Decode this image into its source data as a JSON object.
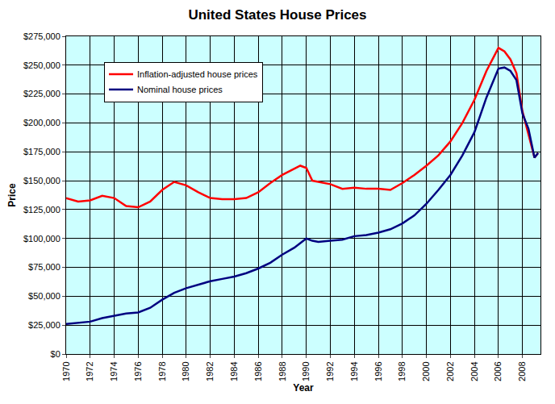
{
  "chart_data": {
    "type": "line",
    "title": "United States House Prices",
    "x_label": "Year",
    "y_label": "Price",
    "x": [
      1970,
      1971,
      1972,
      1973,
      1974,
      1975,
      1976,
      1977,
      1978,
      1979,
      1980,
      1981,
      1982,
      1983,
      1984,
      1985,
      1986,
      1987,
      1988,
      1989,
      1989.5,
      1990,
      1990.5,
      1991,
      1992,
      1993,
      1994,
      1995,
      1996,
      1997,
      1998,
      1999,
      2000,
      2001,
      2002,
      2003,
      2004,
      2005,
      2006,
      2006.5,
      2007,
      2007.5,
      2008,
      2008.5,
      2009,
      2009.3
    ],
    "series": [
      {
        "name": "Inflation-adjusted house prices",
        "color": "#ff0000",
        "values": [
          135000,
          132000,
          133000,
          137000,
          135000,
          128000,
          127000,
          132000,
          142000,
          149000,
          146000,
          140000,
          135000,
          134000,
          134000,
          135000,
          140000,
          148000,
          155000,
          160000,
          163000,
          161000,
          150000,
          149000,
          147000,
          143000,
          144000,
          143000,
          143000,
          142000,
          148000,
          155000,
          163000,
          172000,
          184000,
          200000,
          220000,
          245000,
          265000,
          262000,
          255000,
          243000,
          210000,
          190000,
          170000,
          174000
        ]
      },
      {
        "name": "Nominal house prices",
        "color": "#000080",
        "values": [
          26000,
          27000,
          28000,
          31000,
          33000,
          35000,
          36000,
          40000,
          47000,
          53000,
          57000,
          60000,
          63000,
          65000,
          67000,
          70000,
          74000,
          79000,
          86000,
          92000,
          96000,
          100000,
          98000,
          97000,
          98000,
          99000,
          102000,
          103000,
          105000,
          108000,
          113000,
          120000,
          130000,
          142000,
          155000,
          172000,
          192000,
          222000,
          247000,
          248000,
          245000,
          237000,
          208000,
          195000,
          170000,
          174000
        ]
      }
    ],
    "xlim": [
      1970,
      2009.5
    ],
    "xticks": [
      1970,
      1972,
      1974,
      1976,
      1978,
      1980,
      1982,
      1984,
      1986,
      1988,
      1990,
      1992,
      1994,
      1996,
      1998,
      2000,
      2002,
      2004,
      2006,
      2008
    ],
    "ylim": [
      0,
      275000
    ],
    "yticks": [
      {
        "value": 0,
        "label": "$0"
      },
      {
        "value": 25000,
        "label": "$25,000"
      },
      {
        "value": 50000,
        "label": "$50,000"
      },
      {
        "value": 75000,
        "label": "$75,000"
      },
      {
        "value": 100000,
        "label": "$100,000"
      },
      {
        "value": 125000,
        "label": "$125,000"
      },
      {
        "value": 150000,
        "label": "$150,000"
      },
      {
        "value": 175000,
        "label": "$175,000"
      },
      {
        "value": 200000,
        "label": "$200,000"
      },
      {
        "value": 225000,
        "label": "$225,000"
      },
      {
        "value": 250000,
        "label": "$250,000"
      },
      {
        "value": 275000,
        "label": "$275,000"
      }
    ],
    "grid": true,
    "legend": "upper left"
  }
}
